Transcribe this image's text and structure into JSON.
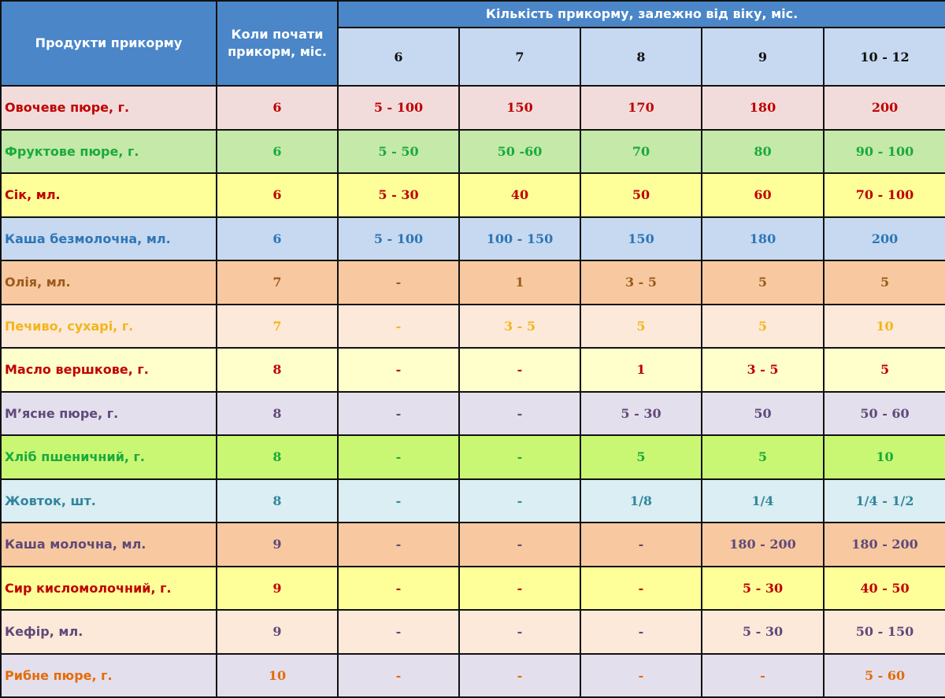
{
  "header": {
    "product_label": "Продукти прикорму",
    "start_label": "Коли почати прикорм, міс.",
    "group_label": "Кількість прикорму, залежно від віку, міс.",
    "ages": [
      "6",
      "7",
      "8",
      "9",
      "10 - 12"
    ]
  },
  "rows": [
    {
      "product": "Овочеве пюре, г.",
      "start": "6",
      "values": [
        "5 - 100",
        "150",
        "170",
        "180",
        "200"
      ],
      "bg": "#f2dcdb",
      "color": "#c00000"
    },
    {
      "product": "Фруктове пюре, г.",
      "start": "6",
      "values": [
        "5 - 50",
        "50 -60",
        "70",
        "80",
        "90 - 100"
      ],
      "bg": "#c4e9a8",
      "color": "#1aaa3c"
    },
    {
      "product": "Сік, мл.",
      "start": "6",
      "values": [
        "5 - 30",
        "40",
        "50",
        "60",
        "70 - 100"
      ],
      "bg": "#ffff99",
      "color": "#c00000"
    },
    {
      "product": "Каша безмолочна, мл.",
      "start": "6",
      "values": [
        "5 - 100",
        "100 - 150",
        "150",
        "180",
        "200"
      ],
      "bg": "#c6d9f0",
      "color": "#2e75b6"
    },
    {
      "product": "Олія, мл.",
      "start": "7",
      "values": [
        "-",
        "1",
        "3 - 5",
        "5",
        "5"
      ],
      "bg": "#f8c9a0",
      "color": "#9c5a1c"
    },
    {
      "product": "Печиво, сухарі, г.",
      "start": "7",
      "values": [
        "-",
        "3 - 5",
        "5",
        "5",
        "10"
      ],
      "bg": "#fde9d9",
      "color": "#f2b61b"
    },
    {
      "product": "Масло вершкове, г.",
      "start": "8",
      "values": [
        "-",
        "-",
        "1",
        "3 - 5",
        "5"
      ],
      "bg": "#ffffcc",
      "color": "#c00000"
    },
    {
      "product": "М’ясне пюре, г.",
      "start": "8",
      "values": [
        "-",
        "-",
        "5 - 30",
        "50",
        "50 - 60"
      ],
      "bg": "#e4dfec",
      "color": "#5f497a"
    },
    {
      "product": "Хліб пшеничний, г.",
      "start": "8",
      "values": [
        "-",
        "-",
        "5",
        "5",
        "10"
      ],
      "bg": "#c9f774",
      "color": "#1aaa3c"
    },
    {
      "product": "Жовток, шт.",
      "start": "8",
      "values": [
        "-",
        "-",
        "1/8",
        "1/4",
        "1/4 - 1/2"
      ],
      "bg": "#daeef3",
      "color": "#31859c"
    },
    {
      "product": "Каша молочна, мл.",
      "start": "9",
      "values": [
        "-",
        "-",
        "-",
        "180 - 200",
        "180 - 200"
      ],
      "bg": "#f8c9a0",
      "color": "#5f497a"
    },
    {
      "product": "Сир кисломолочний, г.",
      "start": "9",
      "values": [
        "-",
        "-",
        "-",
        "5 - 30",
        "40 - 50"
      ],
      "bg": "#ffff99",
      "color": "#c00000"
    },
    {
      "product": "Кефір, мл.",
      "start": "9",
      "values": [
        "-",
        "-",
        "-",
        "5 - 30",
        "50 - 150"
      ],
      "bg": "#fde9d9",
      "color": "#5f497a"
    },
    {
      "product": "Рибне пюре, г.",
      "start": "10",
      "values": [
        "-",
        "-",
        "-",
        "-",
        "5 - 60"
      ],
      "bg": "#e4dfec",
      "color": "#e36c0a"
    }
  ]
}
